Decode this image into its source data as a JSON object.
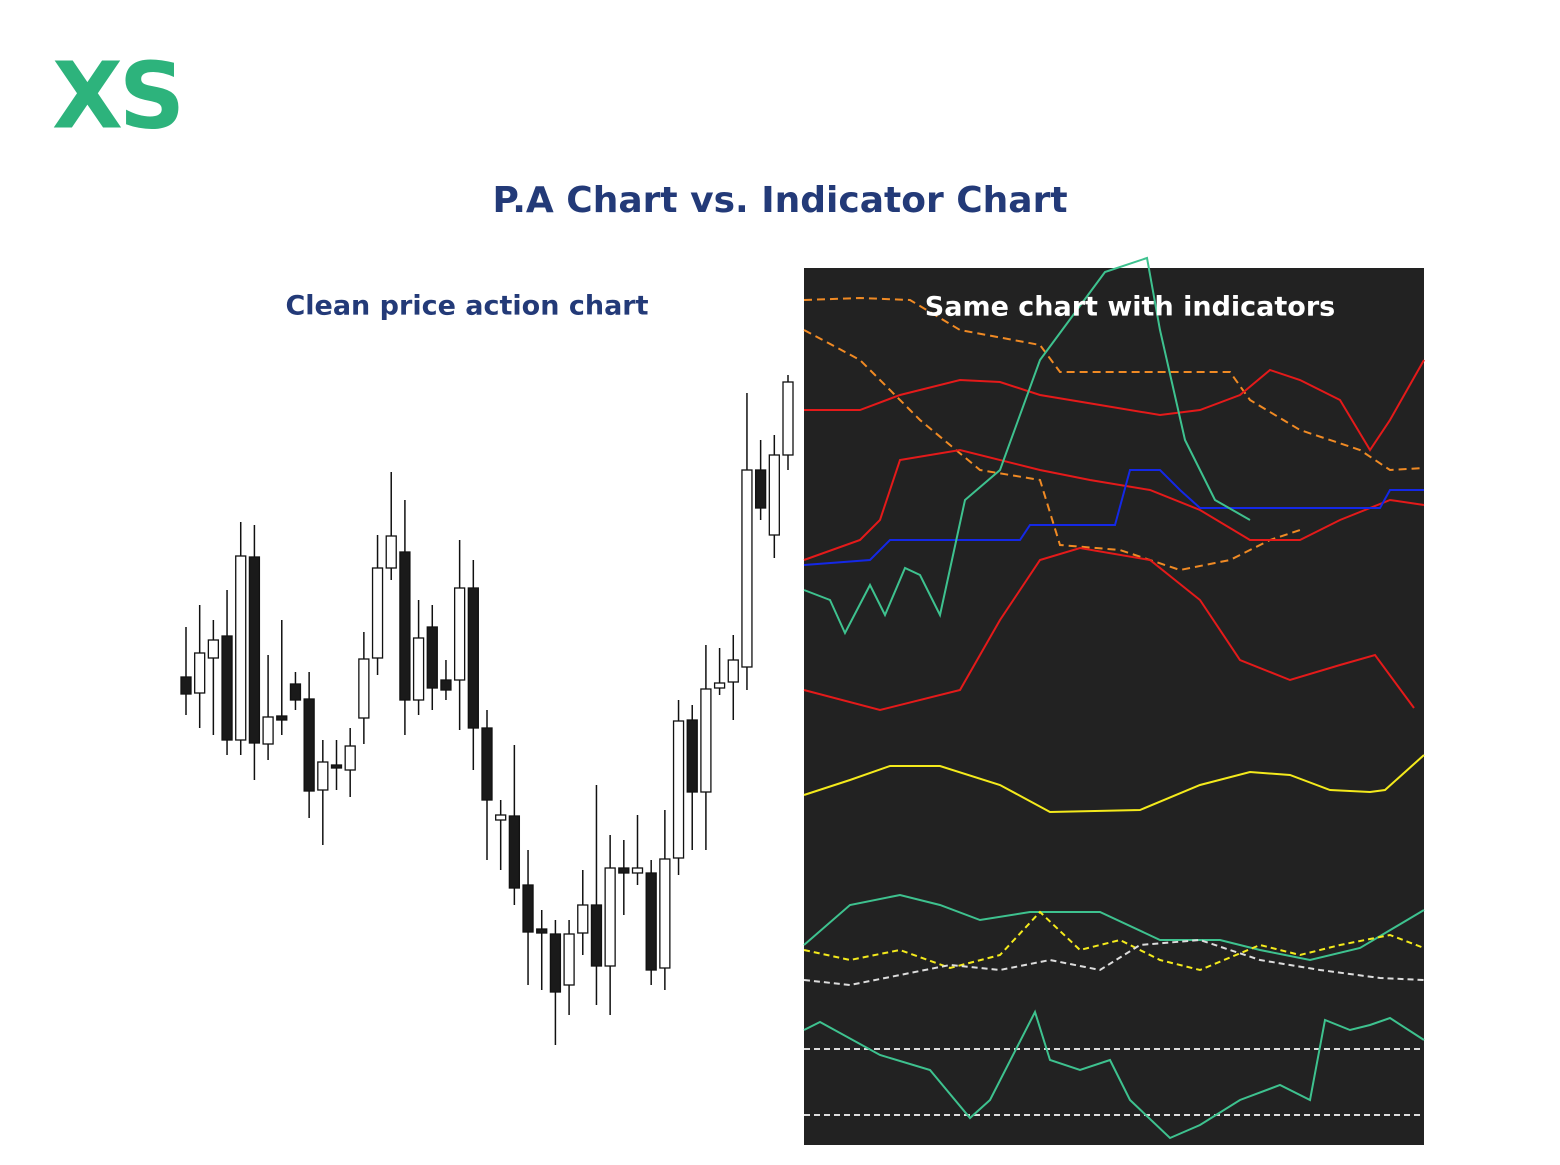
{
  "logo": "XS",
  "title": "P.A Chart vs. Indicator Chart",
  "chart_data": {
    "type": "candlestick",
    "title": "Clean price action chart",
    "open": [
      423,
      407,
      442,
      464,
      360,
      543,
      356,
      384,
      416,
      401,
      310,
      335,
      330,
      382,
      442,
      532,
      548,
      400,
      473,
      420,
      420,
      512,
      372,
      280,
      284,
      215,
      171,
      166,
      115,
      167,
      195,
      134,
      232,
      227,
      227,
      132,
      242,
      380,
      308,
      412,
      418,
      433,
      630,
      565,
      645
    ],
    "high": [
      473,
      495,
      480,
      510,
      578,
      575,
      445,
      480,
      428,
      428,
      360,
      360,
      372,
      468,
      565,
      628,
      600,
      500,
      495,
      440,
      560,
      540,
      390,
      300,
      355,
      250,
      190,
      180,
      180,
      230,
      315,
      265,
      260,
      285,
      240,
      290,
      400,
      395,
      455,
      452,
      465,
      707,
      660,
      665,
      725
    ],
    "low": [
      385,
      372,
      365,
      345,
      345,
      320,
      340,
      365,
      390,
      282,
      255,
      310,
      303,
      356,
      425,
      520,
      365,
      385,
      390,
      400,
      370,
      330,
      240,
      230,
      195,
      115,
      110,
      55,
      85,
      145,
      95,
      85,
      185,
      215,
      115,
      110,
      225,
      250,
      250,
      405,
      380,
      410,
      580,
      542,
      630
    ],
    "close": [
      406,
      447,
      460,
      360,
      544,
      357,
      383,
      380,
      400,
      309,
      338,
      332,
      354,
      441,
      532,
      564,
      400,
      462,
      412,
      410,
      512,
      372,
      300,
      285,
      212,
      168,
      167,
      108,
      166,
      195,
      134,
      232,
      227,
      232,
      130,
      241,
      379,
      308,
      411,
      417,
      440,
      630,
      592,
      645,
      718
    ],
    "ylim": [
      55,
      725
    ]
  },
  "indicator_panel": {
    "title": "Same chart with indicators"
  }
}
